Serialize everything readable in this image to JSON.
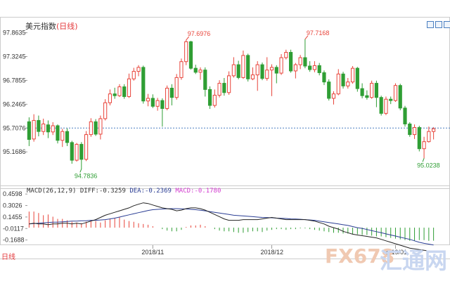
{
  "title": "美元指数",
  "period_label": "(日线)",
  "period_bottom": "日线",
  "corner_buttons": [
    "zoom-in-icon",
    "zoom-out-icon",
    "close-icon"
  ],
  "colors": {
    "up": "#e8443a",
    "down": "#2f9e34",
    "current_line": "#4a7fc1",
    "axis_text": "#333333",
    "diff_line": "#222222",
    "dea_line": "#2a3d94"
  },
  "chart_data": [
    {
      "type": "candlestick",
      "title": "美元指数(日线)",
      "ylim": [
        94.6,
        98.0
      ],
      "yticks": [
        "97.8635",
        "97.3245",
        "96.7855",
        "96.2465",
        "95.7076",
        "95.1686"
      ],
      "ytick_values": [
        97.8635,
        97.3245,
        96.7855,
        96.2465,
        95.7076,
        95.1686
      ],
      "xticks": [
        "2018/11",
        "2018/12",
        "2019/01"
      ],
      "xtick_index": [
        26,
        51,
        77
      ],
      "current_level": 95.7076,
      "annotations": [
        {
          "text": "97.6976",
          "index": 33,
          "value": 97.6976,
          "kind": "high"
        },
        {
          "text": "97.7168",
          "index": 58,
          "value": 97.7168,
          "kind": "high"
        },
        {
          "text": "94.7836",
          "index": 11,
          "value": 94.7836,
          "kind": "low"
        },
        {
          "text": "95.0238",
          "index": 83,
          "value": 95.0238,
          "kind": "low"
        }
      ],
      "candles": [
        [
          95.85,
          95.45,
          95.95,
          95.3
        ],
        [
          95.46,
          95.88,
          96.02,
          95.4
        ],
        [
          95.88,
          95.63,
          95.99,
          95.52
        ],
        [
          95.63,
          95.8,
          95.92,
          95.55
        ],
        [
          95.78,
          95.62,
          95.88,
          95.48
        ],
        [
          95.62,
          95.76,
          95.84,
          95.55
        ],
        [
          95.76,
          95.43,
          95.79,
          95.36
        ],
        [
          95.43,
          95.63,
          95.69,
          95.28
        ],
        [
          95.63,
          95.38,
          95.7,
          95.3
        ],
        [
          95.38,
          94.98,
          95.42,
          94.9
        ],
        [
          94.98,
          95.34,
          95.37,
          94.95
        ],
        [
          95.34,
          95.0,
          95.39,
          94.78
        ],
        [
          95.0,
          95.56,
          95.64,
          94.96
        ],
        [
          95.56,
          95.85,
          95.93,
          95.51
        ],
        [
          95.85,
          95.57,
          95.91,
          95.53
        ],
        [
          95.57,
          95.92,
          95.99,
          95.45
        ],
        [
          95.92,
          96.28,
          96.36,
          95.88
        ],
        [
          96.28,
          96.48,
          96.58,
          96.22
        ],
        [
          96.48,
          96.44,
          96.62,
          96.37
        ],
        [
          96.44,
          96.64,
          96.7,
          96.41
        ],
        [
          96.64,
          96.42,
          96.7,
          96.37
        ],
        [
          96.42,
          96.82,
          96.94,
          96.39
        ],
        [
          96.82,
          96.99,
          97.07,
          96.78
        ],
        [
          96.99,
          97.08,
          97.13,
          96.88
        ],
        [
          97.08,
          96.32,
          97.12,
          96.26
        ],
        [
          96.32,
          96.38,
          96.48,
          96.2
        ],
        [
          96.38,
          96.2,
          96.47,
          96.16
        ],
        [
          96.2,
          96.33,
          96.39,
          96.1
        ],
        [
          96.33,
          96.15,
          96.38,
          95.74
        ],
        [
          96.15,
          96.61,
          96.67,
          96.11
        ],
        [
          96.61,
          96.4,
          96.7,
          96.22
        ],
        [
          96.4,
          96.85,
          96.93,
          96.35
        ],
        [
          96.85,
          97.21,
          97.28,
          96.8
        ],
        [
          97.21,
          97.66,
          97.7,
          97.13
        ],
        [
          97.66,
          97.06,
          97.68,
          97.03
        ],
        [
          97.06,
          96.97,
          97.14,
          96.93
        ],
        [
          96.97,
          97.02,
          97.08,
          96.8
        ],
        [
          97.02,
          96.58,
          97.08,
          96.42
        ],
        [
          96.58,
          96.22,
          96.65,
          96.14
        ],
        [
          96.22,
          96.45,
          96.58,
          96.17
        ],
        [
          96.45,
          96.72,
          96.79,
          96.4
        ],
        [
          96.72,
          96.51,
          96.84,
          96.44
        ],
        [
          96.51,
          96.89,
          96.99,
          96.46
        ],
        [
          96.89,
          97.14,
          97.31,
          96.85
        ],
        [
          97.14,
          96.85,
          97.23,
          96.81
        ],
        [
          96.85,
          97.35,
          97.46,
          96.82
        ],
        [
          97.35,
          96.82,
          97.39,
          96.76
        ],
        [
          96.82,
          96.91,
          97.08,
          96.79
        ],
        [
          96.91,
          97.14,
          97.22,
          96.55
        ],
        [
          97.14,
          96.83,
          97.19,
          96.79
        ],
        [
          96.83,
          97.02,
          97.31,
          96.78
        ],
        [
          97.02,
          97.08,
          97.15,
          96.43
        ],
        [
          97.08,
          96.95,
          97.13,
          96.72
        ],
        [
          96.95,
          97.3,
          97.38,
          96.91
        ],
        [
          97.3,
          97.42,
          97.48,
          97.26
        ],
        [
          97.42,
          97.0,
          97.48,
          96.96
        ],
        [
          97.0,
          97.14,
          97.18,
          96.83
        ],
        [
          97.14,
          97.3,
          97.36,
          97.04
        ],
        [
          97.3,
          97.11,
          97.72,
          97.06
        ],
        [
          97.11,
          97.03,
          97.22,
          96.98
        ],
        [
          97.03,
          97.12,
          97.22,
          96.97
        ],
        [
          97.12,
          96.96,
          97.18,
          96.9
        ],
        [
          96.96,
          96.75,
          97.01,
          96.68
        ],
        [
          96.75,
          96.38,
          96.81,
          96.33
        ],
        [
          96.38,
          96.48,
          96.54,
          96.24
        ],
        [
          96.48,
          96.93,
          97.04,
          96.45
        ],
        [
          96.93,
          96.66,
          96.98,
          96.6
        ],
        [
          96.66,
          96.75,
          96.84,
          96.6
        ],
        [
          96.75,
          97.06,
          97.11,
          96.71
        ],
        [
          97.06,
          96.6,
          97.09,
          96.53
        ],
        [
          96.6,
          96.44,
          96.72,
          96.38
        ],
        [
          96.44,
          96.4,
          96.56,
          96.35
        ],
        [
          96.4,
          96.72,
          96.78,
          96.37
        ],
        [
          96.72,
          96.4,
          96.78,
          96.18
        ],
        [
          96.4,
          96.04,
          96.44,
          95.99
        ],
        [
          96.04,
          96.36,
          96.42,
          96.0
        ],
        [
          96.36,
          96.33,
          96.42,
          96.25
        ],
        [
          96.33,
          96.67,
          96.72,
          96.3
        ],
        [
          96.67,
          96.16,
          96.71,
          96.11
        ],
        [
          96.16,
          95.8,
          96.21,
          95.74
        ],
        [
          95.8,
          95.56,
          95.84,
          95.51
        ],
        [
          95.56,
          95.72,
          95.79,
          95.46
        ],
        [
          95.72,
          95.24,
          95.76,
          95.18
        ],
        [
          95.24,
          95.4,
          95.51,
          95.02
        ],
        [
          95.4,
          95.63,
          95.74,
          95.38
        ],
        [
          95.63,
          95.69,
          95.73,
          95.45
        ]
      ]
    },
    {
      "type": "macd",
      "title": "MACD(26,12,9)",
      "ylim": [
        -0.23,
        0.5
      ],
      "yticks": [
        "0.4598",
        "0.3026",
        "0.1455",
        "-0.0117",
        "-0.1688"
      ],
      "ytick_values": [
        0.4598,
        0.3026,
        0.1455,
        -0.0117,
        -0.1688
      ],
      "legend": [
        {
          "text": "MACD(26,12,9)",
          "key": "header"
        },
        {
          "text": "DIFF:-0.3259",
          "key": "diff"
        },
        {
          "text": "DEA:-0.2369",
          "key": "dea"
        },
        {
          "text": "MACD:-0.1780",
          "key": "macd"
        }
      ],
      "diff": [
        0.05,
        0.06,
        0.05,
        0.05,
        0.04,
        0.05,
        0.05,
        0.06,
        0.06,
        0.05,
        0.06,
        0.05,
        0.07,
        0.09,
        0.11,
        0.14,
        0.17,
        0.19,
        0.21,
        0.23,
        0.25,
        0.27,
        0.3,
        0.32,
        0.34,
        0.33,
        0.31,
        0.29,
        0.27,
        0.26,
        0.25,
        0.23,
        0.24,
        0.26,
        0.27,
        0.27,
        0.26,
        0.24,
        0.21,
        0.18,
        0.15,
        0.12,
        0.1,
        0.1,
        0.1,
        0.11,
        0.11,
        0.11,
        0.11,
        0.12,
        0.13,
        0.14,
        0.13,
        0.12,
        0.11,
        0.11,
        0.11,
        0.11,
        0.11,
        0.1,
        0.09,
        0.07,
        0.05,
        0.02,
        0.0,
        -0.02,
        -0.05,
        -0.07,
        -0.09,
        -0.1,
        -0.11,
        -0.12,
        -0.13,
        -0.14,
        -0.16,
        -0.18,
        -0.2,
        -0.22,
        -0.24,
        -0.26,
        -0.28,
        -0.29,
        -0.3,
        -0.31,
        -0.32,
        -0.33
      ],
      "dea": [
        0.05,
        0.055,
        0.06,
        0.065,
        0.07,
        0.075,
        0.075,
        0.08,
        0.085,
        0.09,
        0.09,
        0.095,
        0.095,
        0.1,
        0.1,
        0.105,
        0.11,
        0.12,
        0.13,
        0.145,
        0.16,
        0.175,
        0.19,
        0.205,
        0.22,
        0.235,
        0.245,
        0.25,
        0.255,
        0.258,
        0.26,
        0.26,
        0.258,
        0.255,
        0.25,
        0.245,
        0.238,
        0.23,
        0.22,
        0.21,
        0.2,
        0.19,
        0.18,
        0.17,
        0.165,
        0.16,
        0.155,
        0.15,
        0.145,
        0.14,
        0.138,
        0.135,
        0.13,
        0.128,
        0.125,
        0.12,
        0.118,
        0.115,
        0.11,
        0.105,
        0.1,
        0.09,
        0.08,
        0.07,
        0.06,
        0.05,
        0.04,
        0.03,
        0.015,
        0.0,
        -0.01,
        -0.025,
        -0.04,
        -0.055,
        -0.07,
        -0.085,
        -0.1,
        -0.115,
        -0.13,
        -0.145,
        -0.16,
        -0.18,
        -0.2,
        -0.215,
        -0.225,
        -0.237
      ],
      "macd": [
        0.22,
        0.22,
        0.2,
        0.17,
        0.18,
        0.15,
        0.12,
        0.12,
        0.1,
        0.08,
        0.07,
        0.06,
        0.08,
        0.09,
        0.09,
        0.07,
        0.1,
        0.12,
        0.13,
        0.14,
        0.11,
        0.09,
        0.08,
        0.06,
        0.05,
        0.04,
        0.02,
        0.0,
        -0.02,
        -0.04,
        -0.05,
        -0.05,
        -0.03,
        0.01,
        0.03,
        0.03,
        0.04,
        0.02,
        0.0,
        -0.02,
        -0.04,
        -0.05,
        -0.05,
        -0.06,
        -0.07,
        -0.07,
        -0.06,
        -0.05,
        -0.05,
        -0.06,
        -0.04,
        -0.03,
        -0.02,
        -0.02,
        -0.03,
        -0.02,
        -0.02,
        -0.01,
        -0.01,
        -0.02,
        -0.03,
        -0.04,
        -0.05,
        -0.06,
        -0.07,
        -0.07,
        -0.08,
        -0.08,
        -0.09,
        -0.09,
        -0.1,
        -0.1,
        -0.11,
        -0.12,
        -0.12,
        -0.13,
        -0.14,
        -0.15,
        -0.16,
        -0.17,
        -0.18,
        -0.18,
        -0.17,
        -0.17,
        -0.18,
        -0.178
      ]
    }
  ]
}
